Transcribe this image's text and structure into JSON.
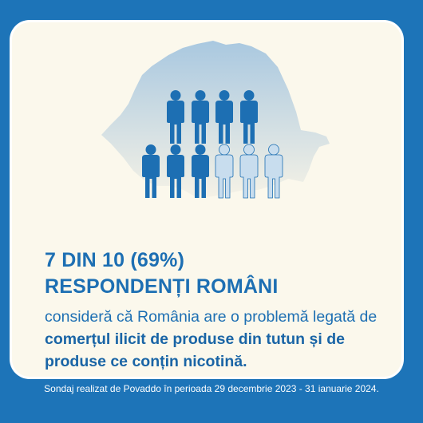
{
  "stat": {
    "line1": "7 DIN 10 (69%)",
    "line2": "RESPONDENȚI ROMÂNI"
  },
  "description": {
    "lead": "consideră că România are o problemă legată de",
    "emphasis_1": "comerțul ilicit de produse din tutun și de",
    "emphasis_2": "produse ce conțin nicotină."
  },
  "footer": "Sondaj realizat de Povaddo în perioada 29 decembrie 2023 - 31 ianuarie 2024.",
  "icons": {
    "total": 10,
    "highlighted": 7,
    "color_dark": "#1d6fb3",
    "color_light": "#c8ddee"
  },
  "colors": {
    "background": "#1d74b8",
    "card": "#fbf8ec",
    "accent": "#1d6fb3"
  }
}
